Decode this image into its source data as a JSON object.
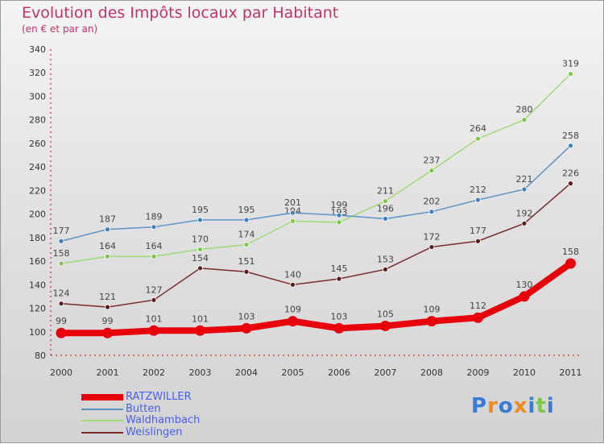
{
  "header": {
    "title": "Evolution des Impôts locaux par Habitant",
    "subtitle": "(en € et par an)"
  },
  "logo_text": "Proxiti",
  "chart_data": {
    "type": "line",
    "title": "Evolution des Impôts locaux par Habitant",
    "subtitle": "(en € et par an)",
    "xlabel": "",
    "ylabel": "",
    "categories": [
      "2000",
      "2001",
      "2002",
      "2003",
      "2004",
      "2005",
      "2006",
      "2007",
      "2008",
      "2009",
      "2010",
      "2011"
    ],
    "ylim": [
      80,
      340
    ],
    "yticks": [
      80,
      100,
      120,
      140,
      160,
      180,
      200,
      220,
      240,
      260,
      280,
      300,
      320,
      340
    ],
    "grid": false,
    "legend_position": "bottom-left",
    "series": [
      {
        "name": "RATZWILLER",
        "color": "#e8000b",
        "values": [
          99,
          99,
          101,
          101,
          103,
          109,
          103,
          105,
          109,
          112,
          130,
          158
        ]
      },
      {
        "name": "Butten",
        "color": "#5b93c8",
        "values": [
          177,
          187,
          189,
          195,
          195,
          201,
          199,
          196,
          202,
          212,
          221,
          258
        ]
      },
      {
        "name": "Waldhambach",
        "color": "#9edc72",
        "values": [
          158,
          164,
          164,
          170,
          174,
          194,
          193,
          211,
          237,
          264,
          280,
          319
        ]
      },
      {
        "name": "Weislingen",
        "color": "#7a2a2a",
        "values": [
          124,
          121,
          127,
          154,
          151,
          140,
          145,
          153,
          172,
          177,
          192,
          226
        ]
      }
    ],
    "data_labels": {
      "RATZWILLER": [
        "99",
        "99",
        "101",
        "101",
        "103",
        "109",
        "103",
        "105",
        "109",
        "112",
        "130",
        "158"
      ],
      "Butten": [
        "177",
        "187",
        "189",
        "195",
        "195",
        "201",
        "199",
        "196",
        "202",
        "212",
        "221",
        "258"
      ],
      "Waldhambach": [
        "158",
        "164",
        "164",
        "170",
        "174",
        "194",
        "193",
        "211",
        "237",
        "264",
        "280",
        "319"
      ],
      "Weislingen": [
        "124",
        "121",
        "127",
        "154",
        "151",
        "140",
        "145",
        "153",
        "172",
        "177",
        "192",
        "226"
      ]
    }
  }
}
